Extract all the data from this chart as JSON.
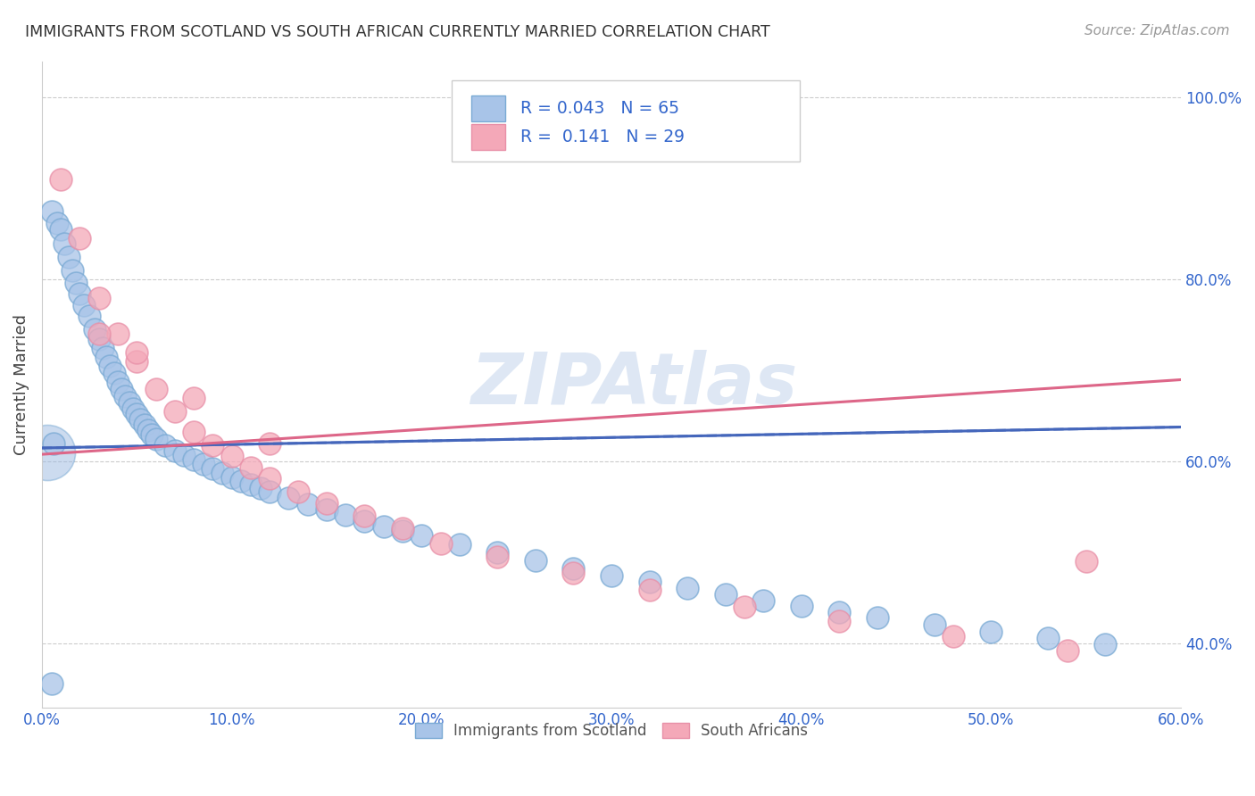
{
  "title": "IMMIGRANTS FROM SCOTLAND VS SOUTH AFRICAN CURRENTLY MARRIED CORRELATION CHART",
  "source": "Source: ZipAtlas.com",
  "ylabel": "Currently Married",
  "xlim": [
    0.0,
    0.006
  ],
  "ylim": [
    0.33,
    1.04
  ],
  "xtick_vals": [
    0.0,
    0.001,
    0.002,
    0.003,
    0.004,
    0.005,
    0.006
  ],
  "xtick_labels": [
    "0.0%",
    "10.0%",
    "20.0%",
    "30.0%",
    "40.0%",
    "50.0%",
    "60.0%"
  ],
  "ytick_vals": [
    0.4,
    0.6,
    0.8,
    1.0
  ],
  "ytick_labels": [
    "40.0%",
    "60.0%",
    "80.0%",
    "100.0%"
  ],
  "legend_labels": [
    "Immigrants from Scotland",
    "South Africans"
  ],
  "series1_color": "#a8c4e8",
  "series2_color": "#f4a8b8",
  "series1_edge_color": "#7aaad4",
  "series2_edge_color": "#e890a8",
  "series1_line_color": "#4466bb",
  "series2_line_color": "#dd6688",
  "R1": 0.043,
  "N1": 65,
  "R2": 0.141,
  "N2": 29,
  "watermark": "ZIPAtlas",
  "watermark_color": "#c8d8ee",
  "scotland_x": [
    5e-05,
    8e-05,
    0.0001,
    0.00012,
    0.00014,
    0.00016,
    0.00018,
    0.0002,
    0.00022,
    0.00025,
    0.00028,
    0.0003,
    0.00032,
    0.00034,
    0.00036,
    0.00038,
    0.0004,
    0.00042,
    0.00044,
    0.00046,
    0.00048,
    0.0005,
    0.00052,
    0.00054,
    0.00056,
    0.00058,
    0.0006,
    0.00065,
    0.0007,
    0.00075,
    0.0008,
    0.00085,
    0.0009,
    0.00095,
    0.001,
    0.00105,
    0.0011,
    0.00115,
    0.0012,
    0.0013,
    0.0014,
    0.0015,
    0.0016,
    0.0017,
    0.0018,
    0.0019,
    0.002,
    0.0022,
    0.0024,
    0.0026,
    0.0028,
    0.003,
    0.0032,
    0.0034,
    0.0036,
    0.0038,
    0.004,
    0.0042,
    0.0044,
    0.0047,
    0.005,
    0.0053,
    0.0056,
    5e-05,
    6e-05
  ],
  "scotland_y": [
    0.875,
    0.862,
    0.855,
    0.84,
    0.825,
    0.81,
    0.796,
    0.785,
    0.772,
    0.76,
    0.745,
    0.735,
    0.725,
    0.715,
    0.705,
    0.697,
    0.688,
    0.68,
    0.672,
    0.665,
    0.658,
    0.652,
    0.646,
    0.64,
    0.635,
    0.63,
    0.625,
    0.618,
    0.612,
    0.607,
    0.602,
    0.597,
    0.592,
    0.588,
    0.583,
    0.579,
    0.575,
    0.571,
    0.567,
    0.56,
    0.553,
    0.547,
    0.541,
    0.535,
    0.529,
    0.524,
    0.519,
    0.509,
    0.5,
    0.491,
    0.483,
    0.475,
    0.468,
    0.461,
    0.454,
    0.447,
    0.441,
    0.435,
    0.429,
    0.421,
    0.413,
    0.406,
    0.399,
    0.356,
    0.62
  ],
  "sa_x": [
    0.0001,
    0.0002,
    0.0003,
    0.0004,
    0.0005,
    0.0006,
    0.0007,
    0.0008,
    0.0009,
    0.001,
    0.0011,
    0.0012,
    0.00135,
    0.0015,
    0.0017,
    0.0019,
    0.0021,
    0.0024,
    0.0028,
    0.0032,
    0.0037,
    0.0042,
    0.0048,
    0.0054,
    0.0003,
    0.0005,
    0.0008,
    0.0012,
    0.0055
  ],
  "sa_y": [
    0.91,
    0.845,
    0.78,
    0.74,
    0.71,
    0.68,
    0.655,
    0.633,
    0.618,
    0.606,
    0.593,
    0.582,
    0.567,
    0.554,
    0.54,
    0.527,
    0.51,
    0.495,
    0.478,
    0.459,
    0.44,
    0.425,
    0.408,
    0.392,
    0.74,
    0.72,
    0.67,
    0.62,
    0.49
  ],
  "line1_x": [
    0.0,
    0.006
  ],
  "line1_y": [
    0.615,
    0.638
  ],
  "line2_x": [
    0.0,
    0.006
  ],
  "line2_y": [
    0.608,
    0.69
  ]
}
